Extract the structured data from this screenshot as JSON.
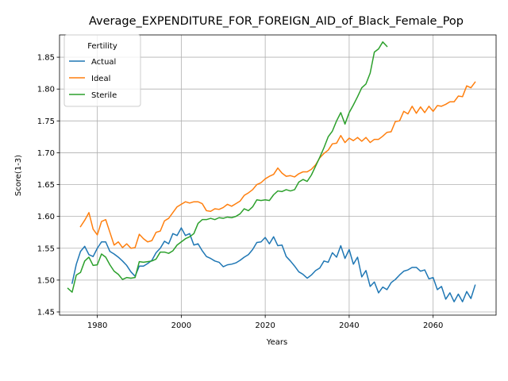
{
  "chart_data": {
    "type": "line",
    "title": "Average_EXPENDITURE_FOR_FOREIGN_AID_of_Black_Female_Pop",
    "xlabel": "Years",
    "ylabel": "Score(1-3)",
    "xlim": [
      1971,
      2075
    ],
    "ylim": [
      1.445,
      1.885
    ],
    "xticks": [
      1980,
      2000,
      2020,
      2040,
      2060
    ],
    "yticks": [
      1.45,
      1.5,
      1.55,
      1.6,
      1.65,
      1.7,
      1.75,
      1.8,
      1.85
    ],
    "ytick_labels": [
      "1.45",
      "1.50",
      "1.55",
      "1.60",
      "1.65",
      "1.70",
      "1.75",
      "1.80",
      "1.85"
    ],
    "grid": true,
    "legend": {
      "title": "Fertility",
      "position": "top-left"
    },
    "series": [
      {
        "name": "Actual",
        "color": "#1f77b4",
        "x": [
          1974,
          1975,
          1976,
          1977,
          1978,
          1979,
          1980,
          1981,
          1982,
          1983,
          1984,
          1985,
          1986,
          1987,
          1988,
          1989,
          1990,
          1991,
          1992,
          1993,
          1994,
          1995,
          1996,
          1997,
          1998,
          1999,
          2000,
          2001,
          2002,
          2003,
          2004,
          2005,
          2006,
          2007,
          2008,
          2009,
          2010,
          2011,
          2012,
          2013,
          2014,
          2015,
          2016,
          2017,
          2018,
          2019,
          2020,
          2021,
          2022,
          2023,
          2024,
          2025,
          2026,
          2027,
          2028,
          2029,
          2030,
          2031,
          2032,
          2033,
          2034,
          2035,
          2036,
          2037,
          2038,
          2039,
          2040,
          2041,
          2042,
          2043,
          2044,
          2045,
          2046,
          2047,
          2048,
          2049,
          2050,
          2051,
          2052,
          2053,
          2054,
          2055,
          2056,
          2057,
          2058,
          2059,
          2060,
          2061,
          2062,
          2063,
          2064,
          2065,
          2066,
          2067,
          2068,
          2069,
          2070
        ],
        "y": [
          1.495,
          1.525,
          1.545,
          1.553,
          1.54,
          1.537,
          1.55,
          1.56,
          1.56,
          1.545,
          1.541,
          1.536,
          1.53,
          1.523,
          1.513,
          1.506,
          1.522,
          1.522,
          1.526,
          1.531,
          1.543,
          1.55,
          1.561,
          1.557,
          1.573,
          1.57,
          1.582,
          1.57,
          1.573,
          1.555,
          1.557,
          1.546,
          1.537,
          1.534,
          1.53,
          1.528,
          1.521,
          1.524,
          1.525,
          1.527,
          1.531,
          1.536,
          1.54,
          1.548,
          1.559,
          1.56,
          1.567,
          1.557,
          1.568,
          1.554,
          1.555,
          1.537,
          1.53,
          1.522,
          1.513,
          1.509,
          1.503,
          1.508,
          1.515,
          1.519,
          1.53,
          1.528,
          1.543,
          1.536,
          1.554,
          1.534,
          1.548,
          1.525,
          1.536,
          1.505,
          1.515,
          1.49,
          1.497,
          1.48,
          1.489,
          1.485,
          1.496,
          1.501,
          1.508,
          1.514,
          1.516,
          1.52,
          1.52,
          1.514,
          1.516,
          1.502,
          1.504,
          1.485,
          1.49,
          1.47,
          1.48,
          1.466,
          1.478,
          1.466,
          1.482,
          1.471,
          1.492
        ]
      },
      {
        "name": "Ideal",
        "color": "#ff7f0e",
        "x": [
          1976,
          1977,
          1978,
          1979,
          1980,
          1981,
          1982,
          1983,
          1984,
          1985,
          1986,
          1987,
          1988,
          1989,
          1990,
          1991,
          1992,
          1993,
          1994,
          1995,
          1996,
          1997,
          1998,
          1999,
          2000,
          2001,
          2002,
          2003,
          2004,
          2005,
          2006,
          2007,
          2008,
          2009,
          2010,
          2011,
          2012,
          2013,
          2014,
          2015,
          2016,
          2017,
          2018,
          2019,
          2020,
          2021,
          2022,
          2023,
          2024,
          2025,
          2026,
          2027,
          2028,
          2029,
          2030,
          2031,
          2032,
          2033,
          2034,
          2035,
          2036,
          2037,
          2038,
          2039,
          2040,
          2041,
          2042,
          2043,
          2044,
          2045,
          2046,
          2047,
          2048,
          2049,
          2050,
          2051,
          2052,
          2053,
          2054,
          2055,
          2056,
          2057,
          2058,
          2059,
          2060,
          2061,
          2062,
          2063,
          2064,
          2065,
          2066,
          2067,
          2068,
          2069,
          2070
        ],
        "y": [
          1.584,
          1.594,
          1.606,
          1.58,
          1.571,
          1.592,
          1.595,
          1.575,
          1.555,
          1.56,
          1.551,
          1.557,
          1.55,
          1.551,
          1.572,
          1.565,
          1.56,
          1.562,
          1.575,
          1.577,
          1.593,
          1.597,
          1.606,
          1.615,
          1.619,
          1.623,
          1.621,
          1.623,
          1.623,
          1.62,
          1.609,
          1.608,
          1.612,
          1.611,
          1.614,
          1.619,
          1.616,
          1.62,
          1.624,
          1.633,
          1.637,
          1.642,
          1.65,
          1.653,
          1.659,
          1.663,
          1.666,
          1.676,
          1.668,
          1.663,
          1.664,
          1.662,
          1.667,
          1.67,
          1.67,
          1.674,
          1.681,
          1.692,
          1.699,
          1.704,
          1.714,
          1.715,
          1.727,
          1.716,
          1.723,
          1.719,
          1.724,
          1.718,
          1.724,
          1.716,
          1.721,
          1.721,
          1.726,
          1.732,
          1.733,
          1.749,
          1.75,
          1.765,
          1.761,
          1.773,
          1.762,
          1.772,
          1.763,
          1.773,
          1.765,
          1.774,
          1.773,
          1.776,
          1.78,
          1.78,
          1.789,
          1.788,
          1.805,
          1.802,
          1.811
        ]
      },
      {
        "name": "Sterile",
        "color": "#2ca02c",
        "x": [
          1973,
          1974,
          1975,
          1976,
          1977,
          1978,
          1979,
          1980,
          1981,
          1982,
          1983,
          1984,
          1985,
          1986,
          1987,
          1988,
          1989,
          1990,
          1991,
          1992,
          1993,
          1994,
          1995,
          1996,
          1997,
          1998,
          1999,
          2000,
          2001,
          2002,
          2003,
          2004,
          2005,
          2006,
          2007,
          2008,
          2009,
          2010,
          2011,
          2012,
          2013,
          2014,
          2015,
          2016,
          2017,
          2018,
          2019,
          2020,
          2021,
          2022,
          2023,
          2024,
          2025,
          2026,
          2027,
          2028,
          2029,
          2030,
          2031,
          2032,
          2033,
          2034,
          2035,
          2036,
          2037,
          2038,
          2039,
          2040,
          2041,
          2042,
          2043,
          2044,
          2045,
          2046,
          2047,
          2048,
          2049
        ],
        "y": [
          1.487,
          1.481,
          1.508,
          1.512,
          1.53,
          1.536,
          1.523,
          1.524,
          1.541,
          1.536,
          1.524,
          1.514,
          1.509,
          1.501,
          1.504,
          1.503,
          1.504,
          1.529,
          1.528,
          1.529,
          1.53,
          1.533,
          1.544,
          1.544,
          1.542,
          1.546,
          1.555,
          1.56,
          1.565,
          1.568,
          1.573,
          1.589,
          1.595,
          1.595,
          1.597,
          1.595,
          1.598,
          1.597,
          1.599,
          1.598,
          1.6,
          1.604,
          1.612,
          1.609,
          1.615,
          1.626,
          1.625,
          1.626,
          1.625,
          1.634,
          1.64,
          1.639,
          1.642,
          1.64,
          1.642,
          1.654,
          1.658,
          1.655,
          1.665,
          1.679,
          1.693,
          1.708,
          1.725,
          1.734,
          1.75,
          1.763,
          1.745,
          1.763,
          1.775,
          1.788,
          1.802,
          1.808,
          1.825,
          1.858,
          1.863,
          1.874,
          1.867
        ]
      }
    ]
  }
}
